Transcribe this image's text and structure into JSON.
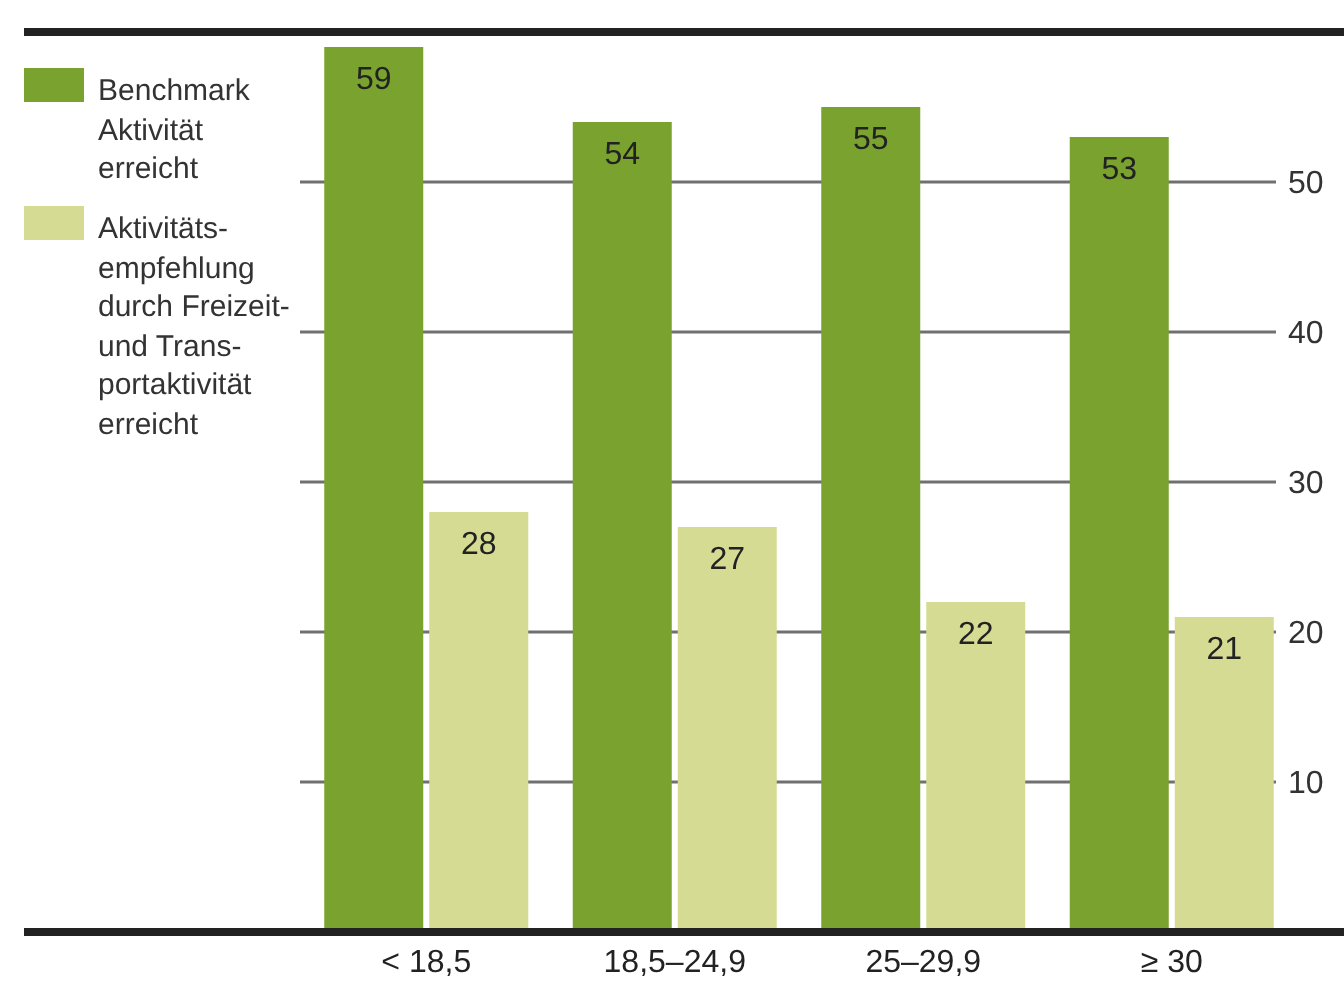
{
  "chart_data": {
    "type": "bar",
    "categories": [
      "< 18,5",
      "18,5–24,9",
      "25–29,9",
      "≥ 30"
    ],
    "series": [
      {
        "name": "Benchmark Aktivität erreicht",
        "color": "#7aa22f",
        "values": [
          59,
          54,
          55,
          53
        ]
      },
      {
        "name": "Aktivitäts- empfehlung durch Freizeit- und Trans- portaktivität erreicht",
        "color": "#d5db92",
        "values": [
          28,
          27,
          22,
          21
        ]
      }
    ],
    "ylim": [
      0,
      60
    ],
    "yticks": [
      10,
      20,
      30,
      40,
      50
    ],
    "grid": "y",
    "legend": "top left",
    "data_labels": true
  }
}
